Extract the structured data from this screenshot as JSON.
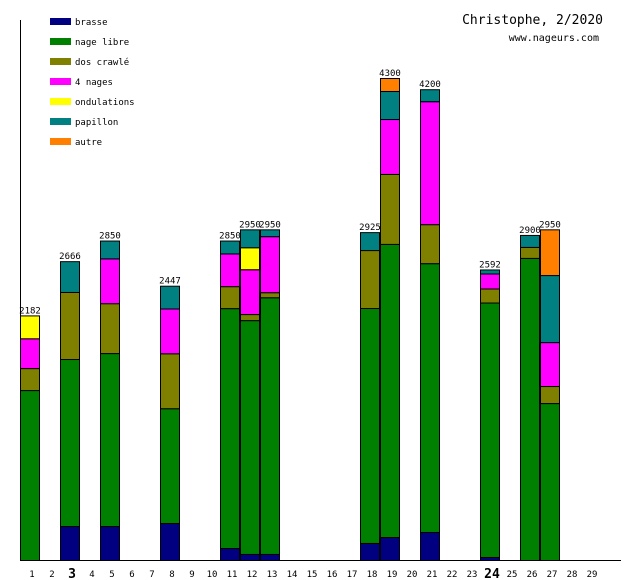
{
  "chart_data": {
    "type": "bar",
    "stacked": true,
    "title": "Christophe, 2/2020",
    "subtitle": "www.nageurs.com",
    "xlabel": "",
    "ylabel": "",
    "ylim": [
      0,
      4300
    ],
    "grid": false,
    "legend_position": "top-left",
    "days": [
      1,
      2,
      3,
      4,
      5,
      6,
      7,
      8,
      9,
      10,
      11,
      12,
      13,
      14,
      15,
      16,
      17,
      18,
      19,
      20,
      21,
      22,
      23,
      24,
      25,
      26,
      27,
      28,
      29
    ],
    "highlighted_days": [
      3,
      24
    ],
    "series": [
      {
        "name": "brasse",
        "color": "#000080"
      },
      {
        "name": "nage libre",
        "color": "#008000"
      },
      {
        "name": "dos crawlé",
        "color": "#808000"
      },
      {
        "name": "4 nages",
        "color": "#ff00ff"
      },
      {
        "name": "ondulations",
        "color": "#ffff00"
      },
      {
        "name": "papillon",
        "color": "#008080"
      },
      {
        "name": "autre",
        "color": "#ff8000"
      }
    ],
    "bars": [
      {
        "day": 1,
        "total": 2182,
        "values": {
          "brasse": 0,
          "nage libre": 1516,
          "dos crawlé": 196,
          "4 nages": 266,
          "ondulations": 204,
          "papillon": 0,
          "autre": 0
        }
      },
      {
        "day": 3,
        "total": 2666,
        "values": {
          "brasse": 303,
          "nage libre": 1490,
          "dos crawlé": 598,
          "4 nages": 0,
          "ondulations": 0,
          "papillon": 275,
          "autre": 0
        }
      },
      {
        "day": 5,
        "total": 2850,
        "values": {
          "brasse": 303,
          "nage libre": 1543,
          "dos crawlé": 445,
          "4 nages": 400,
          "ondulations": 0,
          "papillon": 159,
          "autre": 0
        }
      },
      {
        "day": 8,
        "total": 2447,
        "values": {
          "brasse": 330,
          "nage libre": 1024,
          "dos crawlé": 490,
          "4 nages": 400,
          "ondulations": 0,
          "papillon": 203,
          "autre": 0
        }
      },
      {
        "day": 11,
        "total": 2850,
        "values": {
          "brasse": 107,
          "nage libre": 2140,
          "dos crawlé": 196,
          "4 nages": 292,
          "ondulations": 0,
          "papillon": 115,
          "autre": 0
        }
      },
      {
        "day": 12,
        "total": 2950,
        "values": {
          "brasse": 54,
          "nage libre": 2086,
          "dos crawlé": 54,
          "4 nages": 400,
          "ondulations": 196,
          "papillon": 160,
          "autre": 0
        }
      },
      {
        "day": 13,
        "total": 2950,
        "values": {
          "brasse": 54,
          "nage libre": 2290,
          "dos crawlé": 45,
          "4 nages": 500,
          "ondulations": 0,
          "papillon": 61,
          "autre": 0
        }
      },
      {
        "day": 18,
        "total": 2925,
        "values": {
          "brasse": 152,
          "nage libre": 2096,
          "dos crawlé": 517,
          "4 nages": 0,
          "ondulations": 0,
          "papillon": 160,
          "autre": 0
        }
      },
      {
        "day": 19,
        "total": 4300,
        "values": {
          "brasse": 205,
          "nage libre": 2615,
          "dos crawlé": 624,
          "4 nages": 490,
          "ondulations": 0,
          "papillon": 250,
          "autre": 116
        }
      },
      {
        "day": 21,
        "total": 4200,
        "values": {
          "brasse": 250,
          "nage libre": 2398,
          "dos crawlé": 348,
          "4 nages": 1097,
          "ondulations": 0,
          "papillon": 107,
          "autre": 0
        }
      },
      {
        "day": 24,
        "total": 2592,
        "values": {
          "brasse": 27,
          "nage libre": 2270,
          "dos crawlé": 125,
          "4 nages": 134,
          "ondulations": 0,
          "papillon": 36,
          "autre": 0
        }
      },
      {
        "day": 26,
        "total": 2900,
        "values": {
          "brasse": 0,
          "nage libre": 2695,
          "dos crawlé": 98,
          "4 nages": 0,
          "ondulations": 0,
          "papillon": 107,
          "autre": 0
        }
      },
      {
        "day": 27,
        "total": 2950,
        "values": {
          "brasse": 0,
          "nage libre": 1400,
          "dos crawlé": 152,
          "4 nages": 392,
          "ondulations": 0,
          "papillon": 598,
          "autre": 408
        }
      }
    ]
  }
}
